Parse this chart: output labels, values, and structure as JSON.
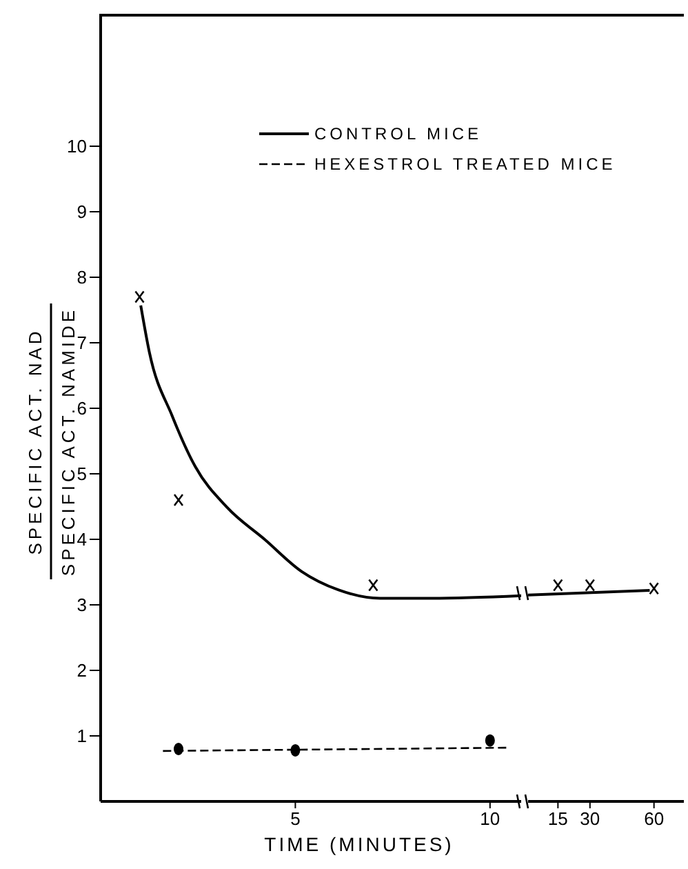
{
  "chart_data": [
    {
      "type": "line",
      "ylabel": "SPECIFIC ACT. NAD\nSPECIFIC ACT. NAMIDE",
      "xlabel": "TIME (MINUTES)",
      "xlim": [
        0,
        10.8
      ],
      "xticks": [
        5,
        10
      ],
      "ylim": [
        0,
        12
      ],
      "yticks": [
        1,
        2,
        3,
        4,
        5,
        6,
        7,
        8,
        9,
        10
      ],
      "grid": false,
      "legend": "top",
      "series": [
        {
          "name": "CONTROL MICE",
          "type": "line",
          "color": "#000000",
          "line_style": "solid",
          "marker": "none",
          "x": [
            1.03,
            1.25,
            1.84,
            2.43,
            3.26,
            4.21,
            5.16,
            6.1,
            7.18,
            8.5,
            10.8
          ],
          "values": [
            7.57,
            6.86,
            5.88,
            5.11,
            4.48,
            4.0,
            3.51,
            3.23,
            3.1,
            3.1,
            3.14
          ]
        },
        {
          "type": "scatter",
          "color": "#000000",
          "marker": "cross",
          "x": [
            1,
            2,
            7
          ],
          "values": [
            7.7,
            4.6,
            3.3
          ]
        },
        {
          "name": "HEXESTROL TREATED MICE",
          "type": "line",
          "color": "#000000",
          "line_style": "dashed",
          "marker": "none",
          "x": [
            1.6,
            10.5
          ],
          "values": [
            0.77,
            0.82
          ]
        },
        {
          "type": "scatter",
          "color": "#000000",
          "marker": "circle",
          "x": [
            2,
            5,
            10
          ],
          "values": [
            0.8,
            0.78,
            0.93
          ]
        }
      ]
    },
    {
      "type": "line",
      "xlim": [
        1,
        74
      ],
      "xticks": [
        15,
        30,
        60
      ],
      "ylim": [
        0,
        12
      ],
      "tick_labels": "x",
      "grid": false,
      "legend": false,
      "series": [
        {
          "type": "line",
          "color": "#000000",
          "line_style": "solid",
          "marker": "none",
          "x": [
            1,
            58
          ],
          "values": [
            3.15,
            3.22
          ]
        },
        {
          "type": "scatter",
          "color": "#000000",
          "marker": "cross",
          "x": [
            15,
            30,
            60
          ],
          "values": [
            3.3,
            3.3,
            3.25
          ]
        }
      ]
    }
  ]
}
